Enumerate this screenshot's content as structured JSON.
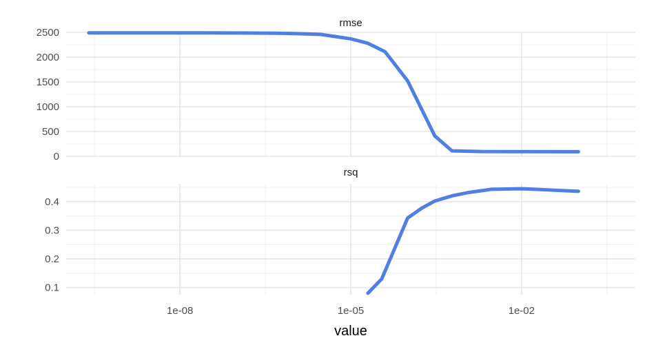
{
  "chart_data": {
    "type": "line",
    "xlabel": "value",
    "x_scale": "log10",
    "x_ticks": [
      "1e-08",
      "1e-05",
      "1e-02"
    ],
    "x_tick_values": [
      1e-08,
      1e-05,
      0.01
    ],
    "xlim": [
      1e-10,
      1.0
    ],
    "grid": true,
    "line_color": "#4f7fe5",
    "panels": [
      {
        "name": "rmse",
        "ylim": [
          0,
          2500
        ],
        "y_ticks": [
          0,
          500,
          1000,
          1500,
          2000,
          2500
        ],
        "y_tick_labels": [
          "0",
          "500",
          "1000",
          "1500",
          "2000",
          "2500"
        ],
        "x": [
          2.5e-10,
          1e-09,
          5e-09,
          2e-08,
          1e-07,
          5e-07,
          1e-06,
          3e-06,
          1e-05,
          2e-05,
          4e-05,
          0.0001,
          0.0003,
          0.0006,
          0.002,
          0.01,
          0.1
        ],
        "y": [
          2490,
          2490,
          2490,
          2490,
          2488,
          2483,
          2476,
          2458,
          2370,
          2280,
          2110,
          1520,
          410,
          110,
          95,
          93,
          92
        ]
      },
      {
        "name": "rsq",
        "ylim": [
          0.075,
          0.462
        ],
        "y_ticks": [
          0.1,
          0.2,
          0.3,
          0.4
        ],
        "y_tick_labels": [
          "0.1",
          "0.2",
          "0.3",
          "0.4"
        ],
        "x": [
          2e-05,
          3.5e-05,
          0.0001,
          0.00018,
          0.0003,
          0.0006,
          0.0012,
          0.003,
          0.01,
          0.1
        ],
        "y": [
          0.08,
          0.13,
          0.343,
          0.378,
          0.402,
          0.42,
          0.432,
          0.443,
          0.445,
          0.436
        ]
      }
    ]
  }
}
